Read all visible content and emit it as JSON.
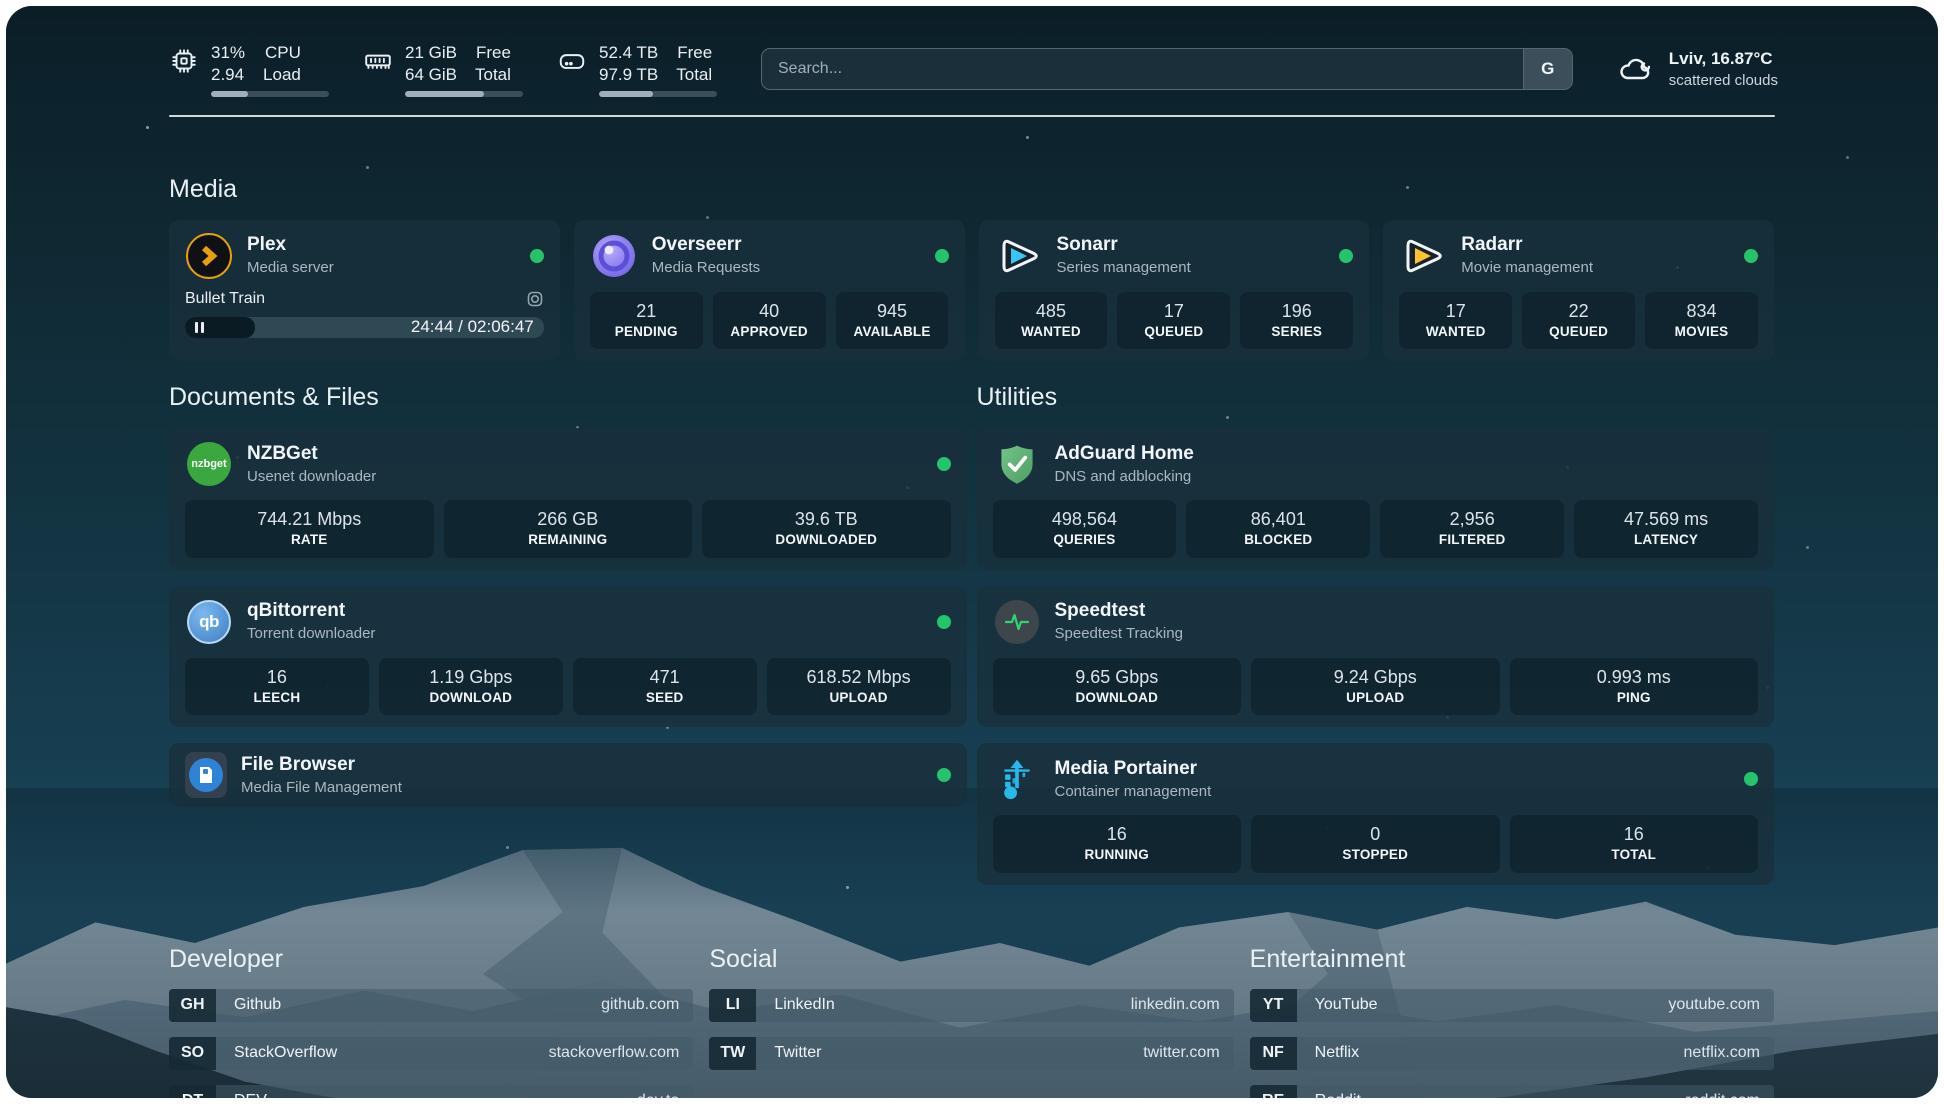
{
  "topbar": {
    "cpu": {
      "value_top": "31%",
      "value_bottom": "2.94",
      "label_top": "CPU",
      "label_bottom": "Load",
      "progress_pct": 31
    },
    "ram": {
      "value_top": "21 GiB",
      "value_bottom": "64 GiB",
      "label_top": "Free",
      "label_bottom": "Total",
      "progress_pct": 67
    },
    "disk": {
      "value_top": "52.4 TB",
      "value_bottom": "97.9 TB",
      "label_top": "Free",
      "label_bottom": "Total",
      "progress_pct": 46
    },
    "search": {
      "placeholder": "Search...",
      "button_label": "G"
    },
    "weather": {
      "location_temp": "Lviv, 16.87°C",
      "condition": "scattered clouds"
    }
  },
  "media": {
    "title": "Media",
    "cards": [
      {
        "name": "Plex",
        "desc": "Media server",
        "status": "online",
        "player": {
          "title": "Bullet Train",
          "time_display": "24:44 / 02:06:47",
          "progress_pct": 19.5,
          "state": "paused"
        }
      },
      {
        "name": "Overseerr",
        "desc": "Media Requests",
        "status": "online",
        "stats": [
          {
            "value": "21",
            "label": "PENDING"
          },
          {
            "value": "40",
            "label": "APPROVED"
          },
          {
            "value": "945",
            "label": "AVAILABLE"
          }
        ]
      },
      {
        "name": "Sonarr",
        "desc": "Series management",
        "status": "online",
        "stats": [
          {
            "value": "485",
            "label": "WANTED"
          },
          {
            "value": "17",
            "label": "QUEUED"
          },
          {
            "value": "196",
            "label": "SERIES"
          }
        ]
      },
      {
        "name": "Radarr",
        "desc": "Movie management",
        "status": "online",
        "stats": [
          {
            "value": "17",
            "label": "WANTED"
          },
          {
            "value": "22",
            "label": "QUEUED"
          },
          {
            "value": "834",
            "label": "MOVIES"
          }
        ]
      }
    ]
  },
  "docs": {
    "title": "Documents & Files",
    "cards": [
      {
        "name": "NZBGet",
        "desc": "Usenet downloader",
        "status": "online",
        "stats": [
          {
            "value": "744.21 Mbps",
            "label": "RATE"
          },
          {
            "value": "266 GB",
            "label": "REMAINING"
          },
          {
            "value": "39.6 TB",
            "label": "DOWNLOADED"
          }
        ]
      },
      {
        "name": "qBittorrent",
        "desc": "Torrent downloader",
        "status": "online",
        "stats": [
          {
            "value": "16",
            "label": "LEECH"
          },
          {
            "value": "1.19 Gbps",
            "label": "DOWNLOAD"
          },
          {
            "value": "471",
            "label": "SEED"
          },
          {
            "value": "618.52 Mbps",
            "label": "UPLOAD"
          }
        ]
      },
      {
        "name": "File Browser",
        "desc": "Media File Management",
        "status": "online"
      }
    ]
  },
  "utilities": {
    "title": "Utilities",
    "cards": [
      {
        "name": "AdGuard Home",
        "desc": "DNS and adblocking",
        "stats": [
          {
            "value": "498,564",
            "label": "QUERIES"
          },
          {
            "value": "86,401",
            "label": "BLOCKED"
          },
          {
            "value": "2,956",
            "label": "FILTERED"
          },
          {
            "value": "47.569 ms",
            "label": "LATENCY"
          }
        ]
      },
      {
        "name": "Speedtest",
        "desc": "Speedtest Tracking",
        "stats": [
          {
            "value": "9.65 Gbps",
            "label": "DOWNLOAD"
          },
          {
            "value": "9.24 Gbps",
            "label": "UPLOAD"
          },
          {
            "value": "0.993 ms",
            "label": "PING"
          }
        ]
      },
      {
        "name": "Media Portainer",
        "desc": "Container management",
        "status": "online",
        "stats": [
          {
            "value": "16",
            "label": "RUNNING"
          },
          {
            "value": "0",
            "label": "STOPPED"
          },
          {
            "value": "16",
            "label": "TOTAL"
          }
        ]
      }
    ]
  },
  "links": {
    "developer": {
      "title": "Developer",
      "items": [
        {
          "tag": "GH",
          "label": "Github",
          "url": "github.com"
        },
        {
          "tag": "SO",
          "label": "StackOverflow",
          "url": "stackoverflow.com"
        },
        {
          "tag": "DT",
          "label": "DEV",
          "url": "dev.to"
        }
      ]
    },
    "social": {
      "title": "Social",
      "items": [
        {
          "tag": "LI",
          "label": "LinkedIn",
          "url": "linkedin.com"
        },
        {
          "tag": "TW",
          "label": "Twitter",
          "url": "twitter.com"
        }
      ]
    },
    "entertainment": {
      "title": "Entertainment",
      "items": [
        {
          "tag": "YT",
          "label": "YouTube",
          "url": "youtube.com"
        },
        {
          "tag": "NF",
          "label": "Netflix",
          "url": "netflix.com"
        },
        {
          "tag": "RE",
          "label": "Reddit",
          "url": "reddit.com"
        }
      ]
    }
  },
  "colors": {
    "status_online": "#25c36a",
    "plex_gold": "#e5a00d",
    "sonarr_blue": "#38c6f4",
    "radarr_yellow": "#ffc230",
    "adguard_green": "#5fb876",
    "speedtest_pulse": "#2ed573",
    "portainer_blue": "#29b8eb"
  }
}
